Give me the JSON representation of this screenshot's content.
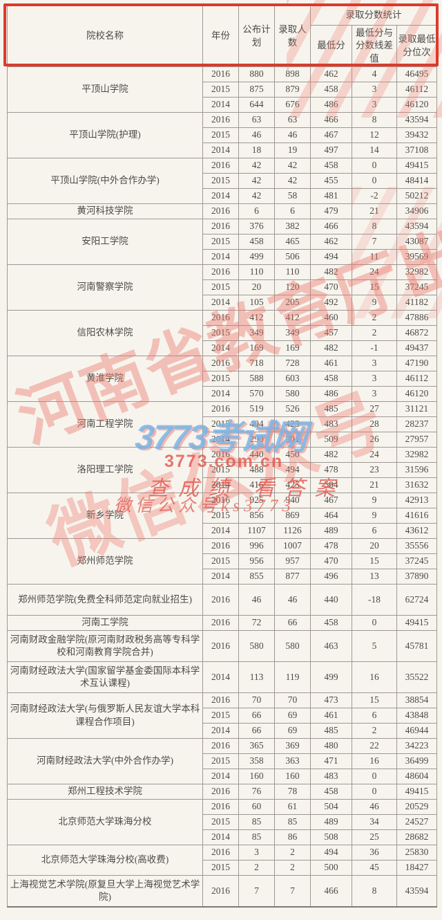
{
  "table": {
    "headers": {
      "institution": "院校名称",
      "year": "年份",
      "plan": "公布计划",
      "admitted": "录取人数",
      "stats_group": "录取分数统计",
      "min_score": "最低分",
      "diff": "最低分与分数线差值",
      "rank": "录取最低分位次"
    },
    "institutions": [
      {
        "name": "平顶山学院",
        "rows": [
          [
            "2016",
            "880",
            "898",
            "462",
            "4",
            "46495"
          ],
          [
            "2015",
            "875",
            "879",
            "458",
            "3",
            "46112"
          ],
          [
            "2014",
            "644",
            "676",
            "486",
            "3",
            "46120"
          ]
        ]
      },
      {
        "name": "平顶山学院(护理)",
        "rows": [
          [
            "2016",
            "63",
            "63",
            "466",
            "8",
            "43594"
          ],
          [
            "2015",
            "46",
            "46",
            "467",
            "12",
            "39432"
          ],
          [
            "2014",
            "18",
            "19",
            "497",
            "14",
            "37108"
          ]
        ]
      },
      {
        "name": "平顶山学院(中外合作办学)",
        "rows": [
          [
            "2016",
            "42",
            "42",
            "458",
            "0",
            "49415"
          ],
          [
            "2015",
            "42",
            "42",
            "455",
            "0",
            "48414"
          ],
          [
            "2014",
            "42",
            "58",
            "481",
            "-2",
            "50212"
          ]
        ]
      },
      {
        "name": "黄河科技学院",
        "rows": [
          [
            "2016",
            "6",
            "6",
            "479",
            "21",
            "34906"
          ]
        ]
      },
      {
        "name": "安阳工学院",
        "rows": [
          [
            "2016",
            "376",
            "382",
            "466",
            "8",
            "43594"
          ],
          [
            "2015",
            "458",
            "465",
            "462",
            "7",
            "43087"
          ],
          [
            "2014",
            "499",
            "506",
            "494",
            "11",
            "39569"
          ]
        ]
      },
      {
        "name": "河南警察学院",
        "rows": [
          [
            "2016",
            "110",
            "110",
            "482",
            "24",
            "32982"
          ],
          [
            "2015",
            "20",
            "120",
            "470",
            "15",
            "37245"
          ],
          [
            "2014",
            "105",
            "205",
            "492",
            "9",
            "41182"
          ]
        ]
      },
      {
        "name": "信阳农林学院",
        "rows": [
          [
            "2016",
            "412",
            "412",
            "460",
            "2",
            "47886"
          ],
          [
            "2015",
            "349",
            "349",
            "457",
            "2",
            "46872"
          ],
          [
            "2014",
            "169",
            "169",
            "482",
            "-1",
            "49437"
          ]
        ]
      },
      {
        "name": "黄淮学院",
        "rows": [
          [
            "2016",
            "718",
            "728",
            "461",
            "3",
            "47190"
          ],
          [
            "2015",
            "588",
            "603",
            "458",
            "3",
            "46112"
          ],
          [
            "2014",
            "570",
            "580",
            "486",
            "3",
            "46120"
          ]
        ]
      },
      {
        "name": "河南工程学院",
        "rows": [
          [
            "2016",
            "519",
            "526",
            "485",
            "27",
            "31121"
          ],
          [
            "2015",
            "404",
            "423",
            "483",
            "28",
            "28237"
          ],
          [
            "2014",
            "290",
            "301",
            "509",
            "26",
            "27957"
          ]
        ]
      },
      {
        "name": "洛阳理工学院",
        "rows": [
          [
            "2016",
            "440",
            "450",
            "482",
            "24",
            "32982"
          ],
          [
            "2015",
            "488",
            "494",
            "478",
            "23",
            "31596"
          ],
          [
            "2014",
            "416",
            "425",
            "504",
            "21",
            "31632"
          ]
        ]
      },
      {
        "name": "新乡学院",
        "rows": [
          [
            "2016",
            "925",
            "940",
            "467",
            "9",
            "42913"
          ],
          [
            "2015",
            "856",
            "869",
            "464",
            "9",
            "41616"
          ],
          [
            "2014",
            "1107",
            "1126",
            "489",
            "6",
            "43612"
          ]
        ]
      },
      {
        "name": "郑州师范学院",
        "rows": [
          [
            "2016",
            "996",
            "1007",
            "478",
            "20",
            "35556"
          ],
          [
            "2015",
            "956",
            "957",
            "470",
            "15",
            "37245"
          ],
          [
            "2014",
            "855",
            "877",
            "496",
            "13",
            "37890"
          ]
        ]
      },
      {
        "name": "郑州师范学院(免费全科师范定向就业招生)",
        "tall": true,
        "rows": [
          [
            "2016",
            "46",
            "46",
            "440",
            "-18",
            "62724"
          ]
        ]
      },
      {
        "name": "河南工学院",
        "rows": [
          [
            "2016",
            "72",
            "66",
            "458",
            "0",
            "49415"
          ]
        ]
      },
      {
        "name": "河南财政金融学院(原河南财政税务高等专科学校和河南教育学院合并)",
        "tall": true,
        "rows": [
          [
            "2016",
            "580",
            "580",
            "463",
            "5",
            "45781"
          ]
        ]
      },
      {
        "name": "河南财经政法大学(国家留学基金委国际本科学术互认课程)",
        "tall": true,
        "rows": [
          [
            "2014",
            "113",
            "119",
            "499",
            "16",
            "35522"
          ]
        ]
      },
      {
        "name": "河南财经政法大学(与俄罗斯人民友谊大学本科课程合作项目)",
        "rows": [
          [
            "2016",
            "70",
            "70",
            "473",
            "15",
            "38854"
          ],
          [
            "2015",
            "66",
            "69",
            "461",
            "6",
            "43848"
          ],
          [
            "2014",
            "66",
            "69",
            "485",
            "2",
            "46944"
          ]
        ]
      },
      {
        "name": "河南财经政法大学(中外合作办学)",
        "rows": [
          [
            "2016",
            "365",
            "369",
            "480",
            "22",
            "34223"
          ],
          [
            "2015",
            "358",
            "363",
            "471",
            "16",
            "36499"
          ],
          [
            "2014",
            "160",
            "160",
            "483",
            "0",
            "48604"
          ]
        ]
      },
      {
        "name": "郑州工程技术学院",
        "rows": [
          [
            "2016",
            "76",
            "78",
            "458",
            "0",
            "49415"
          ]
        ]
      },
      {
        "name": "北京师范大学珠海分校",
        "rows": [
          [
            "2016",
            "60",
            "61",
            "504",
            "46",
            "20529"
          ],
          [
            "2015",
            "85",
            "85",
            "489",
            "34",
            "24527"
          ],
          [
            "2014",
            "85",
            "86",
            "508",
            "25",
            "28682"
          ]
        ]
      },
      {
        "name": "北京师范大学珠海分校(高收费)",
        "rows": [
          [
            "2016",
            "3",
            "2",
            "494",
            "36",
            "25830"
          ],
          [
            "2015",
            "2",
            "2",
            "500",
            "45",
            "18427"
          ]
        ]
      },
      {
        "name": "上海视觉艺术学院(原复旦大学上海视觉艺术学院)",
        "tall": true,
        "rows": [
          [
            "2016",
            "7",
            "7",
            "466",
            "8",
            "43594"
          ]
        ]
      }
    ]
  },
  "watermarks": {
    "site_name": "3773考试网",
    "site_url": "3773.com.cn",
    "slogan": "查成绩 看答案",
    "wechat": "微信公众号ks3773",
    "diagonal_text_1": "河南省教育厅出品",
    "diagonal_text_2": "微信公众号"
  },
  "colors": {
    "frame_red": "#dc3a2c",
    "watermark_blue": "#7ab4e5",
    "watermark_red": "#e4584e",
    "giant_watermark_pink": "#ec746a",
    "table_line_gray": "#9d9792",
    "paper_background": "#f7f4ee"
  }
}
